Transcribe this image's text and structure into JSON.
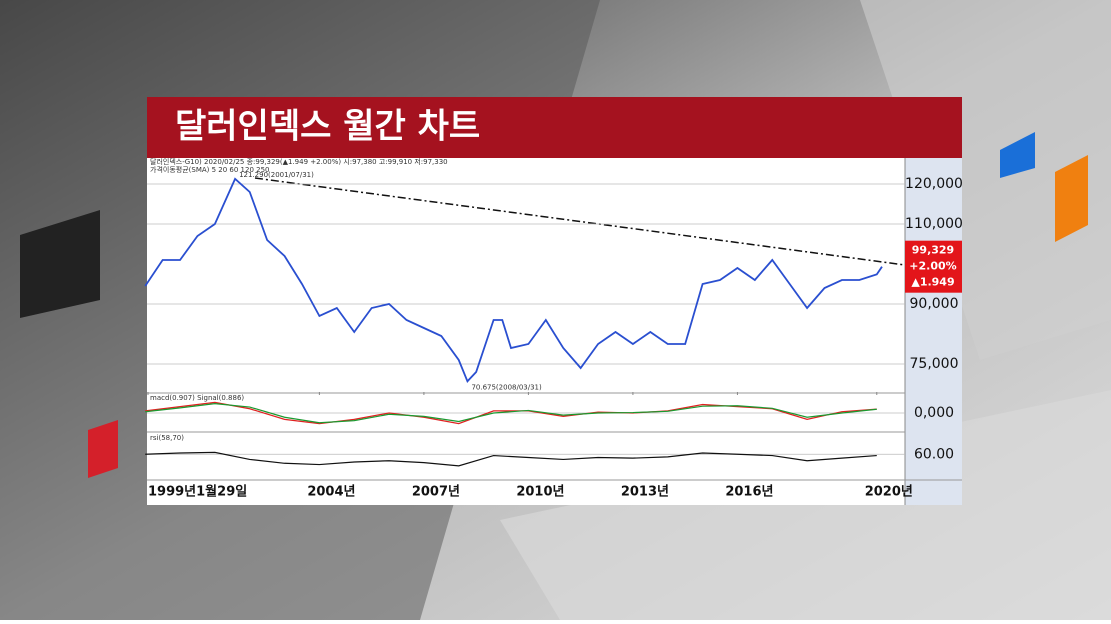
{
  "title": "달러인덱스 월간 차트",
  "chart_data": [
    {
      "type": "line",
      "header": "달러인덱스-G10) 2020/02/25 종:99,329(▲1.949 +2.00%) 시:97,380 고:99,910 저:97,330",
      "subheader": "가격이동평균(SMA) 5 20 60 120 250",
      "annotations": [
        {
          "x": 2001.58,
          "y": 121.29,
          "label": "121.290(2001/07/31)"
        },
        {
          "x": 2008.25,
          "y": 70.675,
          "label": "70.675(2008/03/31)"
        }
      ],
      "x": [
        1999.0,
        1999.5,
        2000.0,
        2000.5,
        2001.0,
        2001.58,
        2002.0,
        2002.5,
        2003.0,
        2003.5,
        2004.0,
        2004.5,
        2005.0,
        2005.5,
        2006.0,
        2006.5,
        2007.0,
        2007.5,
        2008.0,
        2008.25,
        2008.5,
        2009.0,
        2009.25,
        2009.5,
        2010.0,
        2010.5,
        2011.0,
        2011.5,
        2012.0,
        2012.5,
        2013.0,
        2013.5,
        2014.0,
        2014.5,
        2015.0,
        2015.5,
        2016.0,
        2016.5,
        2017.0,
        2017.5,
        2018.0,
        2018.5,
        2019.0,
        2019.5,
        2020.0,
        2020.15
      ],
      "values": [
        94.5,
        101,
        101,
        107,
        110,
        121.29,
        118,
        106,
        102,
        95,
        87,
        89,
        83,
        89,
        90,
        86,
        84,
        82,
        76,
        70.675,
        73,
        86,
        86,
        79,
        80,
        86,
        79,
        74,
        80,
        83,
        80,
        83,
        80,
        80,
        95,
        96,
        99,
        96,
        101,
        95,
        89,
        94,
        96,
        96,
        97.4,
        99.329
      ],
      "color": "#2a4fd0",
      "last_price": {
        "value": 99.329,
        "label": "99,329"
      },
      "change_pct": {
        "value": 2.0,
        "label": "+2.00%"
      },
      "change": {
        "value": 1.949,
        "label": "▲1.949"
      },
      "xlim": [
        1999.08,
        2020.15
      ],
      "xticks": [
        {
          "value": 1999.08,
          "label": "1999년1월29일"
        },
        {
          "value": 2004,
          "label": "2004년"
        },
        {
          "value": 2007,
          "label": "2007년"
        },
        {
          "value": 2010,
          "label": "2010년"
        },
        {
          "value": 2013,
          "label": "2013년"
        },
        {
          "value": 2016,
          "label": "2016년"
        },
        {
          "value": 2020,
          "label": "2020년"
        }
      ],
      "ylim": [
        68,
        126
      ],
      "yticks": [
        {
          "value": 120,
          "label": "120,000"
        },
        {
          "value": 110,
          "label": "110,000"
        },
        {
          "value": 90,
          "label": "90,000"
        },
        {
          "value": 75,
          "label": "75,000"
        }
      ]
    },
    {
      "type": "line",
      "label": "macd(0.907) Signal(0.886)",
      "x": [
        1999,
        2000,
        2001,
        2002,
        2003,
        2004,
        2005,
        2006,
        2007,
        2008,
        2009,
        2010,
        2011,
        2012,
        2013,
        2014,
        2015,
        2016,
        2017,
        2018,
        2019,
        2020
      ],
      "series": [
        {
          "color": "#e02020",
          "values": [
            0.5,
            1.5,
            2.5,
            1.0,
            -1.5,
            -2.5,
            -1.5,
            0.0,
            -1.0,
            -2.5,
            0.5,
            0.5,
            -0.8,
            0.2,
            0.0,
            0.5,
            2.0,
            1.5,
            1.0,
            -1.5,
            0.3,
            0.907
          ]
        },
        {
          "color": "#1a9a30",
          "values": [
            0.3,
            1.2,
            2.2,
            1.4,
            -1.0,
            -2.3,
            -1.8,
            -0.3,
            -0.8,
            -2.0,
            0.0,
            0.6,
            -0.5,
            0.0,
            0.1,
            0.4,
            1.6,
            1.7,
            1.1,
            -1.0,
            0.0,
            0.886
          ]
        }
      ],
      "xlim": [
        1999.08,
        2020.15
      ],
      "ylim": [
        -4,
        4
      ],
      "yticks": [
        {
          "value": 0,
          "label": "0,000"
        }
      ]
    },
    {
      "type": "line",
      "label": "rsi(58,70)",
      "x": [
        1999,
        2000,
        2001,
        2002,
        2003,
        2004,
        2005,
        2006,
        2007,
        2008,
        2009,
        2010,
        2011,
        2012,
        2013,
        2014,
        2015,
        2016,
        2017,
        2018,
        2019,
        2020
      ],
      "series": [
        {
          "color": "#111111",
          "values": [
            60,
            62,
            63,
            52,
            46,
            44,
            48,
            50,
            47,
            42,
            58,
            55,
            52,
            55,
            54,
            56,
            62,
            60,
            58,
            50,
            54,
            58
          ]
        }
      ],
      "xlim": [
        1999.08,
        2020.15
      ],
      "ylim": [
        20,
        90
      ],
      "yticks": [
        {
          "value": 60,
          "label": "60.00"
        }
      ]
    }
  ]
}
